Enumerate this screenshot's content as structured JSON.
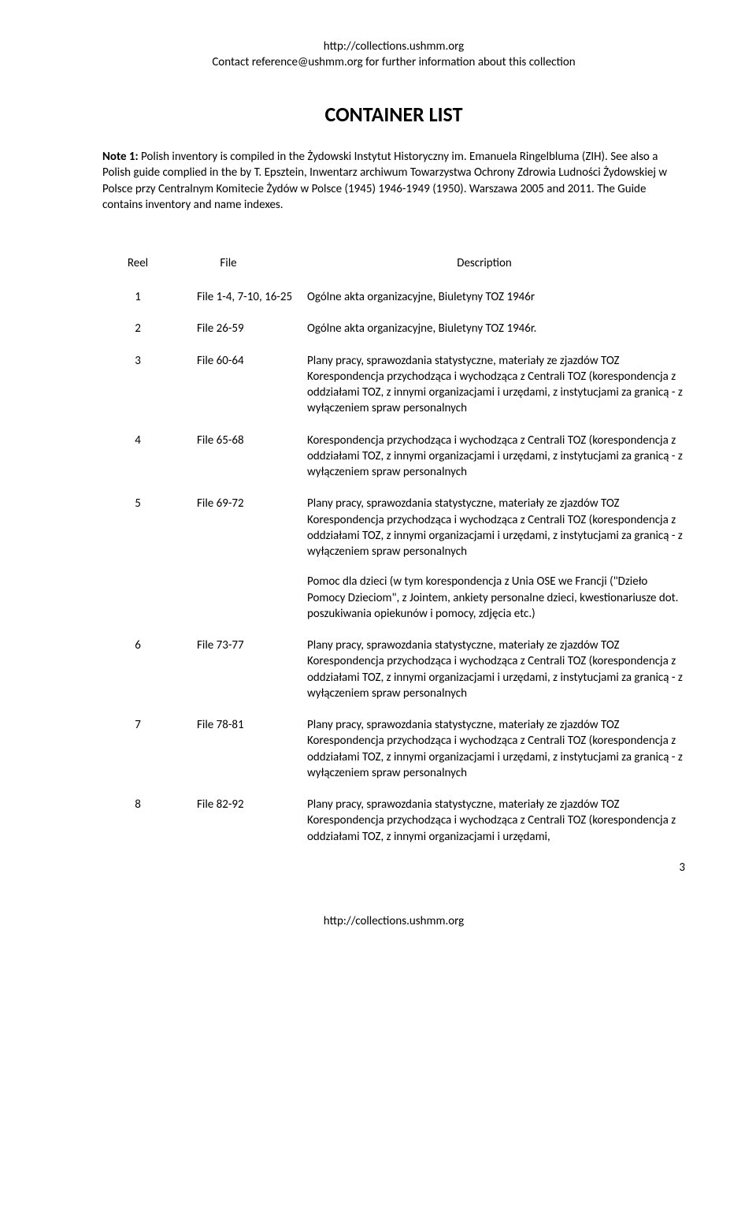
{
  "header": {
    "url": "http://collections.ushmm.org",
    "contact": "Contact reference@ushmm.org for further information about this collection"
  },
  "title": "CONTAINER LIST",
  "note": {
    "label": "Note 1:",
    "text": "  Polish inventory is compiled in the Żydowski Instytut Historyczny im. Emanuela Ringelbluma (ZIH). See also a Polish guide complied in the by T. Epsztein, Inwentarz archiwum Towarzystwa Ochrony Zdrowia Ludności Żydowskiej w Polsce przy Centralnym Komitecie Żydów w Polsce (1945) 1946-1949 (1950). Warszawa 2005 and 2011. The Guide contains inventory and name indexes."
  },
  "columns": {
    "reel": "Reel",
    "file": "File",
    "desc": "Description"
  },
  "rows": [
    {
      "reel": "1",
      "file": "File 1-4, 7-10, 16-25",
      "desc": [
        "Ogólne akta organizacyjne, Biuletyny TOZ 1946r"
      ]
    },
    {
      "reel": "2",
      "file": "File 26-59",
      "desc": [
        "Ogólne akta organizacyjne, Biuletyny TOZ 1946r."
      ]
    },
    {
      "reel": "3",
      "file": "File 60-64",
      "desc": [
        "Plany pracy, sprawozdania statystyczne, materiały ze zjazdów TOZ Korespondencja przychodząca i wychodząca z Centrali TOZ (korespondencja z oddziałami TOZ, z innymi organizacjami i urzędami, z instytucjami za granicą - z wyłączeniem spraw personalnych"
      ]
    },
    {
      "reel": "4",
      "file": "File 65-68",
      "desc": [
        "Korespondencja przychodząca i wychodząca z Centrali TOZ (korespondencja z oddziałami TOZ, z innymi organizacjami i urzędami, z instytucjami za granicą - z wyłączeniem spraw personalnych"
      ]
    },
    {
      "reel": "5",
      "file": "File 69-72",
      "desc": [
        "Plany pracy, sprawozdania statystyczne, materiały ze zjazdów TOZ Korespondencja przychodząca i wychodząca z Centrali TOZ (korespondencja z oddziałami TOZ, z innymi organizacjami i urzędami, z instytucjami za granicą - z wyłączeniem spraw personalnych",
        "Pomoc dla dzieci (w tym korespondencja z Unia OSE we Francji (\"Dzieło Pomocy Dzieciom\", z Jointem, ankiety personalne dzieci, kwestionariusze dot. poszukiwania opiekunów i pomocy, zdjęcia etc.)"
      ]
    },
    {
      "reel": "6",
      "file": "File 73-77",
      "desc": [
        "Plany pracy, sprawozdania statystyczne, materiały ze zjazdów TOZ Korespondencja przychodząca i wychodząca z Centrali TOZ (korespondencja z oddziałami TOZ, z innymi organizacjami i urzędami, z instytucjami za granicą - z wyłączeniem spraw personalnych"
      ]
    },
    {
      "reel": "7",
      "file": "File 78-81",
      "desc": [
        "Plany pracy, sprawozdania statystyczne, materiały ze zjazdów TOZ Korespondencja przychodząca i wychodząca z Centrali TOZ (korespondencja z oddziałami TOZ, z innymi organizacjami i urzędami, z instytucjami za granicą - z wyłączeniem spraw personalnych"
      ]
    },
    {
      "reel": "8",
      "file": "File 82-92",
      "desc": [
        "Plany pracy, sprawozdania statystyczne, materiały ze zjazdów TOZ Korespondencja przychodząca i wychodząca z Centrali TOZ (korespondencja z oddziałami TOZ, z innymi organizacjami i urzędami,"
      ]
    }
  ],
  "footer": {
    "url": "http://collections.ushmm.org",
    "page_number": "3"
  }
}
